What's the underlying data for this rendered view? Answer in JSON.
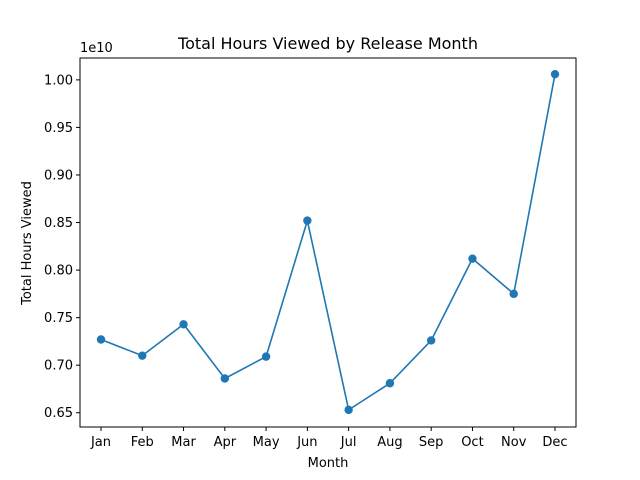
{
  "chart_data": {
    "type": "line",
    "title": "Total Hours Viewed by Release Month",
    "xlabel": "Month",
    "ylabel": "Total Hours Viewed",
    "offset_label": "1e10",
    "categories": [
      "Jan",
      "Feb",
      "Mar",
      "Apr",
      "May",
      "Jun",
      "Jul",
      "Aug",
      "Sep",
      "Oct",
      "Nov",
      "Dec"
    ],
    "series": [
      {
        "values": [
          7270000000.0,
          7100000000.0,
          7430000000.0,
          6860000000.0,
          7090000000.0,
          8520000000.0,
          6530000000.0,
          6810000000.0,
          7260000000.0,
          8120000000.0,
          7750000000.0,
          10060000000.0
        ],
        "color": "#1f77b4",
        "marker": "circle"
      }
    ],
    "ylim": [
      6350000000.0,
      10230000000.0
    ],
    "yticks": [
      0.65,
      0.7,
      0.75,
      0.8,
      0.85,
      0.9,
      0.95,
      1.0
    ],
    "ytick_labels": [
      "0.65",
      "0.70",
      "0.75",
      "0.80",
      "0.85",
      "0.90",
      "0.95",
      "1.00"
    ],
    "grid": false,
    "legend": "none"
  }
}
